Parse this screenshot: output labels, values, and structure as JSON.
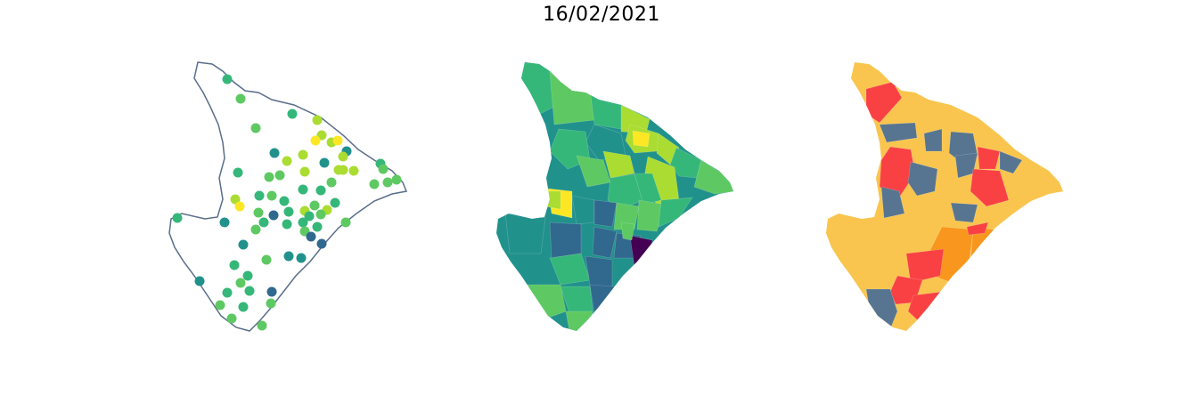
{
  "figure": {
    "title": "16/02/2021"
  },
  "colors": {
    "outline": "#5a6e8a",
    "viridis_dark": "#440154",
    "viridis_blue": "#31688e",
    "viridis_teal": "#21918c",
    "viridis_green": "#35b779",
    "viridis_lightgreen": "#5ec962",
    "viridis_yellowgreen": "#aadc32",
    "viridis_yellow": "#fde725",
    "cat_yellow": "#f9c54e",
    "cat_red": "#f94144",
    "cat_orange": "#f8961e",
    "cat_slate": "#577590"
  },
  "panels": [
    {
      "id": "points-map",
      "kind": "scatter points over state outline"
    },
    {
      "id": "continuous-choropleth",
      "kind": "municipal choropleth, viridis scale"
    },
    {
      "id": "categorical-choropleth",
      "kind": "municipal choropleth, 4 categories"
    }
  ]
}
